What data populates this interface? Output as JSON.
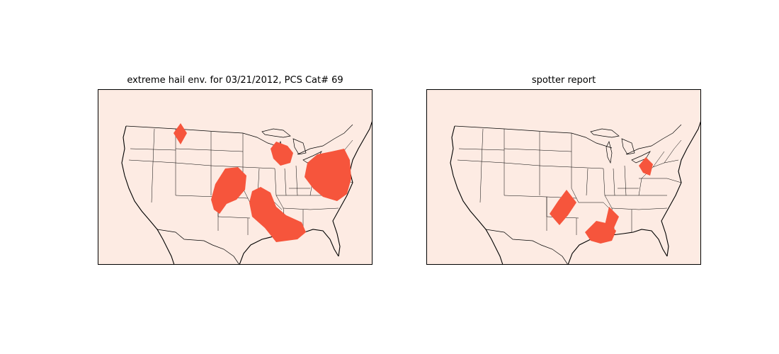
{
  "panels": [
    {
      "title": "extreme hail env. for 03/21/2012, PCS Cat# 69"
    },
    {
      "title": "spotter report"
    }
  ],
  "colors": {
    "background": "#fdebe3",
    "region_fill": "#f6553c",
    "border": "#000000"
  },
  "icons": [
    "us-map-outline"
  ]
}
